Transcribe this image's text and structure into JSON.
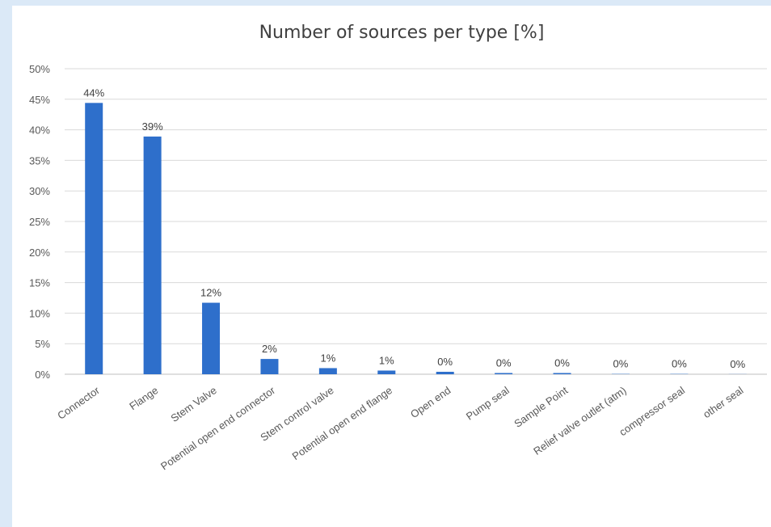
{
  "chart_data": {
    "type": "bar",
    "title": "Number of sources per type [%]",
    "categories": [
      "Connector",
      "Flange",
      "Stem Valve",
      "Potential open end connector",
      "Stem control valve",
      "Potential open end flange",
      "Open end",
      "Pump seal",
      "Sample Point",
      "Relief valve outlet (atm)",
      "compressor seal",
      "other seal"
    ],
    "values": [
      44.4,
      38.9,
      11.7,
      2.5,
      1.0,
      0.6,
      0.4,
      0.2,
      0.2,
      0.05,
      0.05,
      0.02
    ],
    "data_labels": [
      "44%",
      "39%",
      "12%",
      "2%",
      "1%",
      "1%",
      "0%",
      "0%",
      "0%",
      "0%",
      "0%",
      "0%"
    ],
    "y_ticks": [
      "0%",
      "5%",
      "10%",
      "15%",
      "20%",
      "25%",
      "30%",
      "35%",
      "40%",
      "45%",
      "50%"
    ],
    "ylim": [
      0,
      50
    ],
    "xlabel": "",
    "ylabel": "",
    "grid": true,
    "bar_color": "#2e6fcb",
    "background": "#dbe9f7"
  }
}
